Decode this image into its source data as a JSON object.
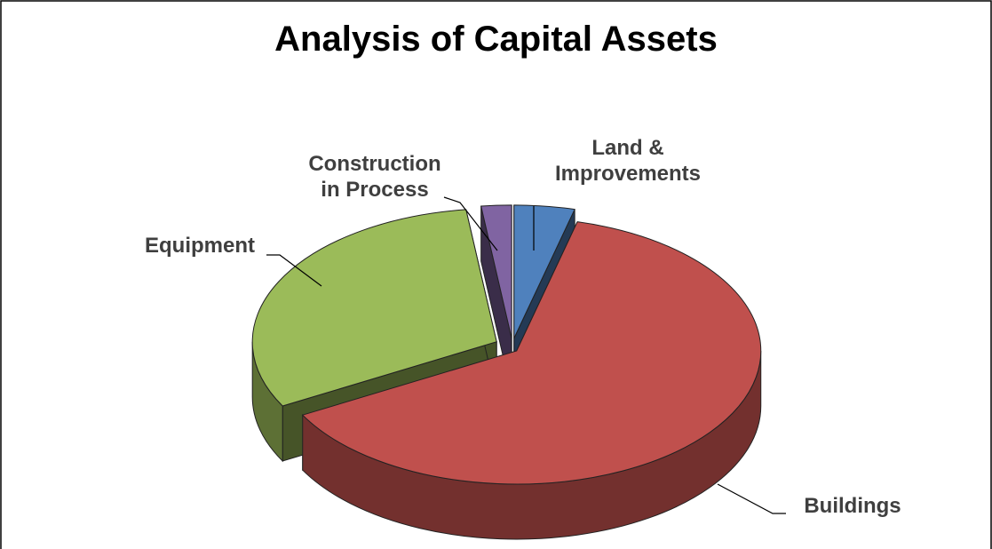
{
  "chart_data": {
    "type": "pie3d",
    "title": "Analysis of Capital Assets",
    "categories": [
      "Land & Improvements",
      "Buildings",
      "Equipment",
      "Construction in Process"
    ],
    "values": [
      4,
      63,
      31,
      2
    ],
    "colors": [
      "#4f81bd",
      "#c0504d",
      "#9bbb59",
      "#8064a2"
    ]
  }
}
